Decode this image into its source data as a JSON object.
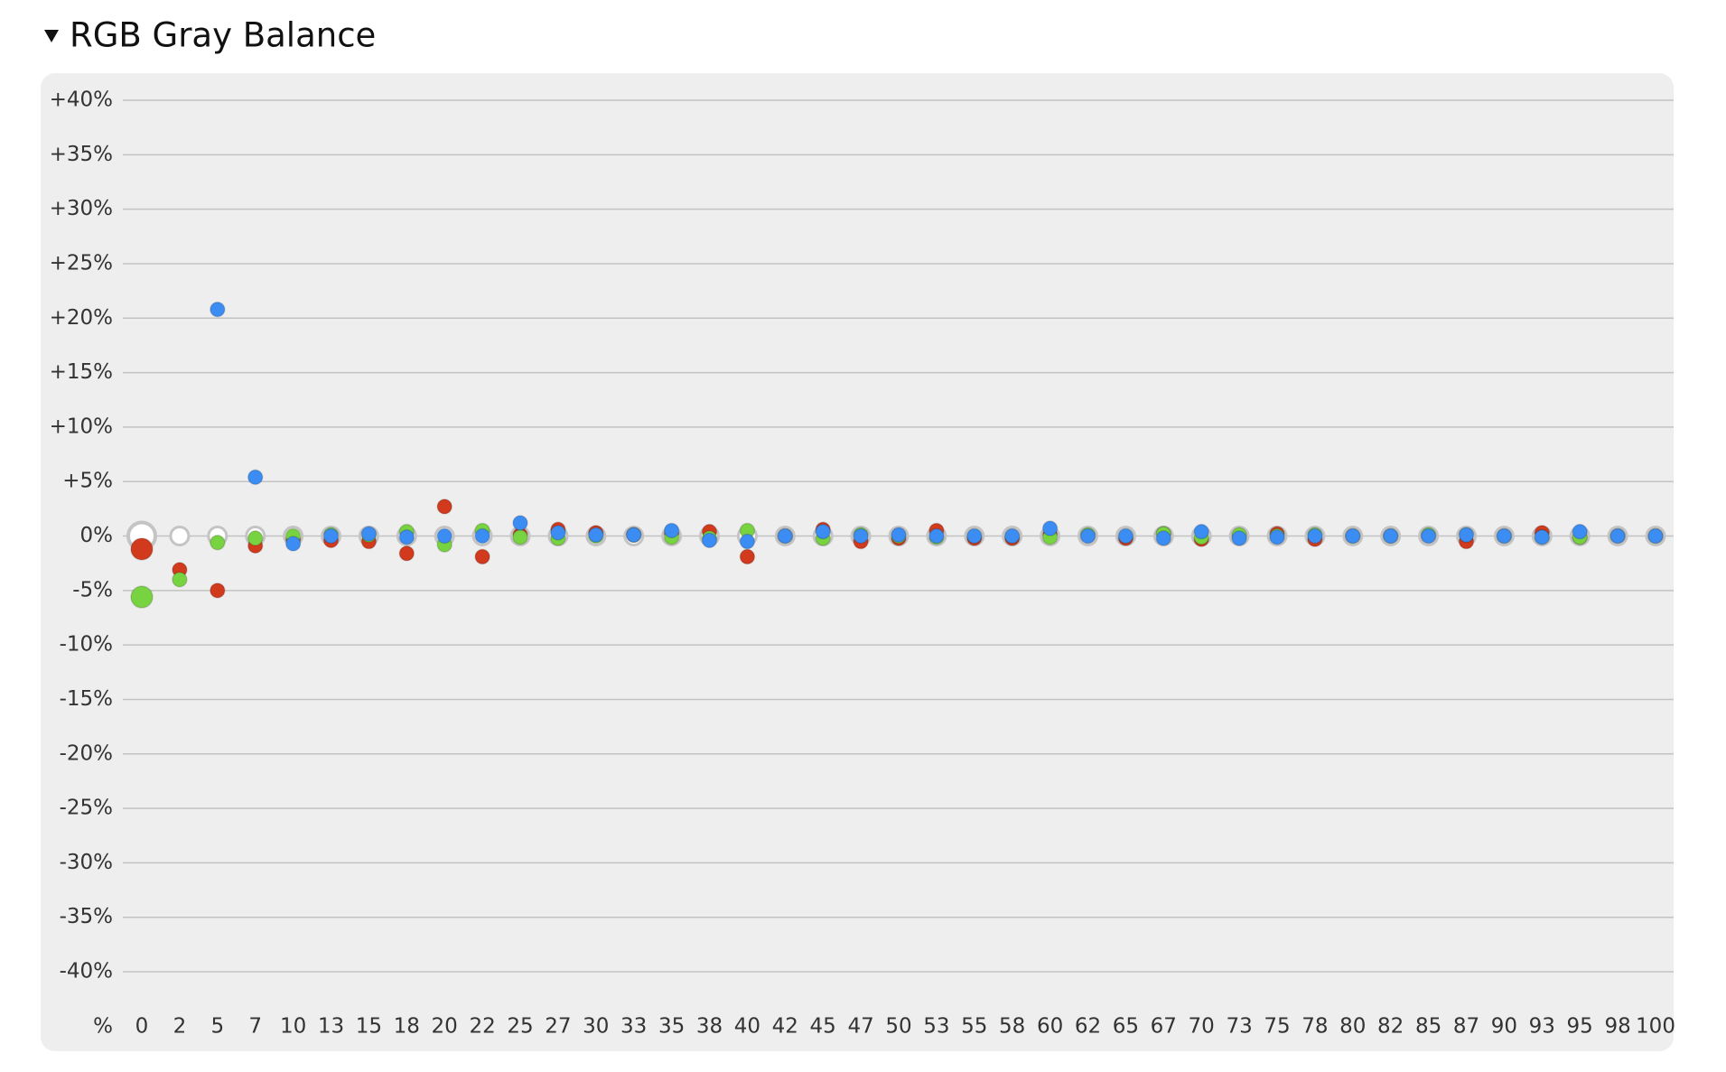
{
  "chart_data": {
    "type": "scatter",
    "title": "RGB Gray Balance",
    "x_label": "%",
    "categories": [
      "0",
      "2",
      "5",
      "7",
      "10",
      "13",
      "15",
      "18",
      "20",
      "22",
      "25",
      "27",
      "30",
      "33",
      "35",
      "38",
      "40",
      "42",
      "45",
      "47",
      "50",
      "53",
      "55",
      "58",
      "60",
      "62",
      "65",
      "67",
      "70",
      "73",
      "75",
      "78",
      "80",
      "82",
      "85",
      "87",
      "90",
      "93",
      "95",
      "98",
      "100"
    ],
    "ylim": [
      -40,
      40
    ],
    "yticks": [
      {
        "value": 40,
        "label": "+40%"
      },
      {
        "value": 35,
        "label": "+35%"
      },
      {
        "value": 30,
        "label": "+30%"
      },
      {
        "value": 25,
        "label": "+25%"
      },
      {
        "value": 20,
        "label": "+20%"
      },
      {
        "value": 15,
        "label": "+15%"
      },
      {
        "value": 10,
        "label": "+10%"
      },
      {
        "value": 5,
        "label": "+5%"
      },
      {
        "value": 0,
        "label": "0%"
      },
      {
        "value": -5,
        "label": "-5%"
      },
      {
        "value": -10,
        "label": "-10%"
      },
      {
        "value": -15,
        "label": "-15%"
      },
      {
        "value": -20,
        "label": "-20%"
      },
      {
        "value": -25,
        "label": "-25%"
      },
      {
        "value": -30,
        "label": "-30%"
      },
      {
        "value": -35,
        "label": "-35%"
      },
      {
        "value": -40,
        "label": "-40%"
      }
    ],
    "grid": true,
    "series": [
      {
        "color": "#c4c4c4",
        "values": [
          0,
          0,
          0,
          0,
          0,
          0,
          0,
          0,
          0,
          0,
          0,
          0,
          0,
          0,
          0,
          0,
          0,
          0,
          0,
          0,
          0,
          0,
          0,
          0,
          0,
          0,
          0,
          0,
          0,
          0,
          0,
          0,
          0,
          0,
          0,
          0,
          0,
          0,
          0,
          0,
          0
        ]
      },
      {
        "color": "#d23a1d",
        "values": [
          -1.2,
          -3.1,
          -5,
          -0.9,
          -0.3,
          -0.4,
          -0.5,
          -1.6,
          2.7,
          -1.9,
          0.1,
          0.6,
          0.3,
          0.1,
          0.2,
          0.4,
          -1.9,
          0,
          0.6,
          -0.5,
          -0.2,
          0.5,
          -0.2,
          -0.2,
          0.1,
          0,
          -0.2,
          0.2,
          -0.3,
          0,
          0.2,
          -0.3,
          0,
          0,
          0,
          -0.5,
          0,
          0.3,
          -0.1,
          0,
          0
        ]
      },
      {
        "color": "#78d340",
        "values": [
          -5.6,
          -4,
          -0.6,
          -0.2,
          0,
          0.1,
          0.1,
          0.4,
          -0.8,
          0.5,
          -0.1,
          -0.2,
          0,
          0.1,
          -0.1,
          -0.2,
          0.5,
          0,
          -0.2,
          0.1,
          0,
          -0.1,
          0,
          0,
          -0.1,
          0.1,
          0,
          0.2,
          -0.1,
          0.1,
          0,
          0.1,
          0,
          0,
          0.1,
          0.1,
          0,
          -0.1,
          -0.1,
          0,
          0
        ]
      },
      {
        "color": "#3b8df3",
        "values": [
          null,
          null,
          20.8,
          5.4,
          -0.7,
          0,
          0.2,
          -0.1,
          0,
          0,
          1.2,
          0.3,
          0.1,
          0.1,
          0.5,
          -0.4,
          -0.5,
          0,
          0.4,
          0,
          0.1,
          0,
          0,
          0,
          0.7,
          0,
          0,
          -0.2,
          0.4,
          -0.2,
          -0.1,
          0,
          0,
          0,
          0,
          0.1,
          0,
          -0.1,
          0.4,
          0,
          0
        ]
      }
    ]
  }
}
